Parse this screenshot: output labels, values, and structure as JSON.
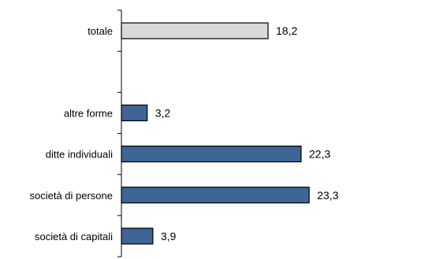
{
  "chart_data": {
    "type": "bar",
    "orientation": "horizontal",
    "title": "",
    "xlabel": "",
    "ylabel": "",
    "xlim": [
      0,
      25
    ],
    "grid": false,
    "legend": "none",
    "categories": [
      "totale",
      "",
      "altre forme",
      "ditte individuali",
      "società di persone",
      "società di capitali"
    ],
    "values": [
      18.2,
      null,
      3.2,
      22.3,
      23.3,
      3.9
    ],
    "value_labels": [
      "18,2",
      "",
      "3,2",
      "22,3",
      "23,3",
      "3,9"
    ],
    "bar_colors": [
      "#d9d9d9",
      "",
      "#3d6596",
      "#3d6596",
      "#3d6596",
      "#3d6596"
    ],
    "bar_outline_color": "#000000",
    "axis_color": "#000000"
  }
}
